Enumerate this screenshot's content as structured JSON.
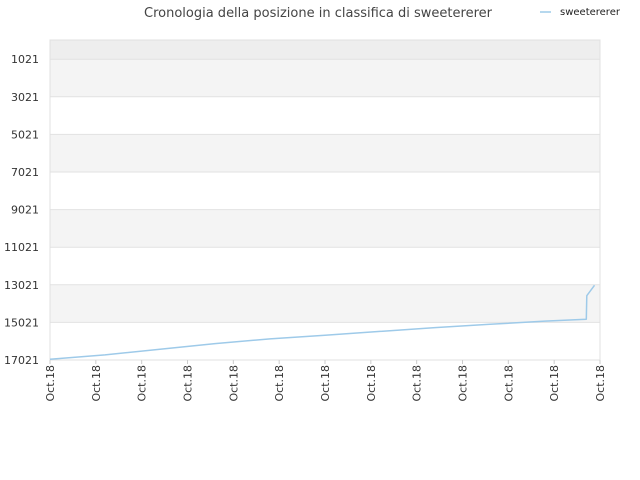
{
  "chart_data": {
    "type": "line",
    "title": "Cronologia della posizione in classifica di sweetererer",
    "xlabel": "",
    "ylabel": "",
    "y_inverted": true,
    "ylim": [
      17021,
      0
    ],
    "y_ticks": [
      1021,
      3021,
      5021,
      7021,
      9021,
      11021,
      13021,
      15021,
      17021
    ],
    "x_tick_labels": [
      "Oct.18",
      "Oct.18",
      "Oct.18",
      "Oct.18",
      "Oct.18",
      "Oct.18",
      "Oct.18",
      "Oct.18",
      "Oct.18",
      "Oct.18",
      "Oct.18",
      "Oct.18",
      "Oct.18"
    ],
    "grid": true,
    "legend_position": "top-right",
    "series": [
      {
        "name": "sweetererer",
        "color": "#9ecae9",
        "points": [
          [
            0.0,
            16980
          ],
          [
            0.1,
            16750
          ],
          [
            0.2,
            16450
          ],
          [
            0.3,
            16150
          ],
          [
            0.4,
            15900
          ],
          [
            0.5,
            15700
          ],
          [
            0.6,
            15500
          ],
          [
            0.7,
            15300
          ],
          [
            0.8,
            15120
          ],
          [
            0.9,
            14950
          ],
          [
            0.975,
            14850
          ],
          [
            0.976,
            13600
          ],
          [
            0.99,
            13050
          ]
        ]
      }
    ]
  }
}
